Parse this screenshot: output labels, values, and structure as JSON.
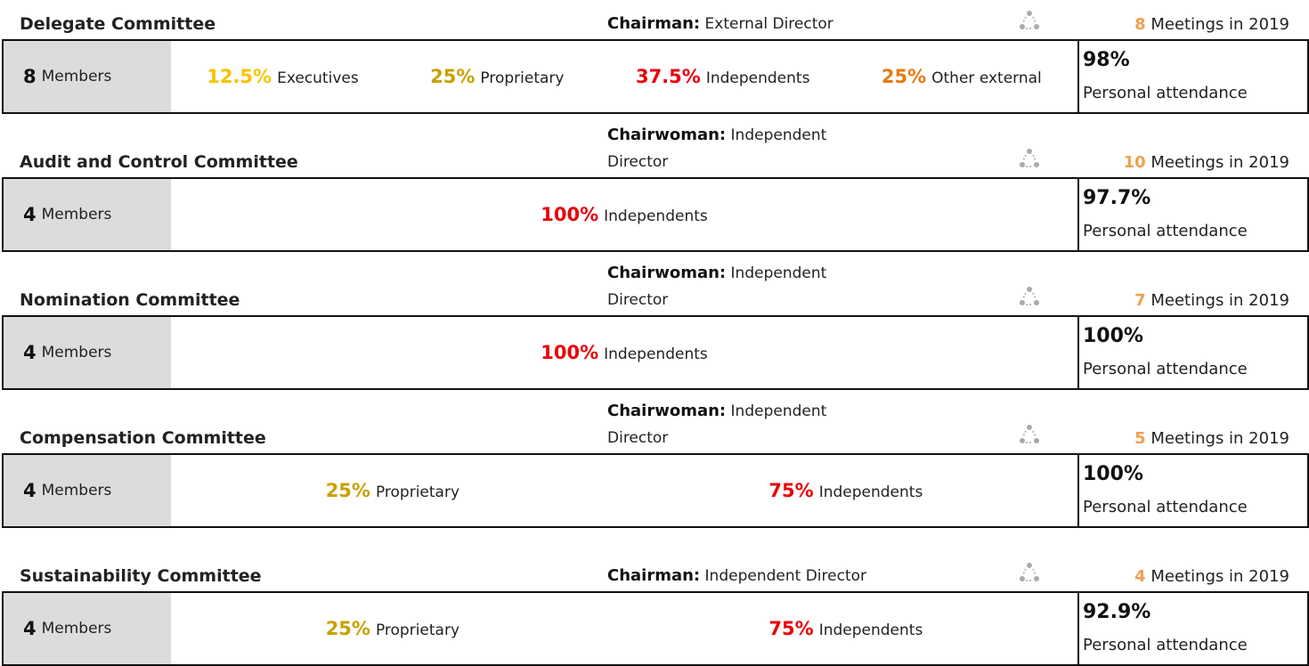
{
  "committees": [
    {
      "name": "Delegate Committee",
      "chair_label": "Chairman:",
      "chair_value": "External Director",
      "meetings_number": "8",
      "meetings_text": "Meetings in 2019",
      "members_number": "8",
      "members_text": "Members",
      "composition": [
        {
          "value": "12.5%",
          "label": "Executives",
          "color": "#f5c400"
        },
        {
          "value": "25%",
          "label": "Proprietary",
          "color": "#c9a000"
        },
        {
          "value": "37.5%",
          "label": "Independents",
          "color": "#e8000b"
        },
        {
          "value": "25%",
          "label": "Other external",
          "color": "#e87a10"
        }
      ],
      "attendance_value": "98%",
      "attendance_text": "Personal attendance"
    },
    {
      "name": "Audit and Control  Committee",
      "chair_label": "Chairwoman:",
      "chair_value": "Independent Director",
      "meetings_number": "10",
      "meetings_text": "Meetings in 2019",
      "members_number": "4",
      "members_text": "Members",
      "composition": [
        {
          "value": "100%",
          "label": "Independents",
          "color": "#e8000b"
        }
      ],
      "attendance_value": "97.7%",
      "attendance_text": "Personal attendance"
    },
    {
      "name": "Nomination Committee",
      "chair_label": "Chairwoman:",
      "chair_value": "Independent Director",
      "meetings_number": "7",
      "meetings_text": "Meetings in 2019",
      "members_number": "4",
      "members_text": "Members",
      "composition": [
        {
          "value": "100%",
          "label": "Independents",
          "color": "#e8000b"
        }
      ],
      "attendance_value": "100%",
      "attendance_text": "Personal attendance"
    },
    {
      "name": "Compensation Committee",
      "chair_label": "Chairwoman:",
      "chair_value": "Independent Director",
      "meetings_number": "5",
      "meetings_text": "Meetings in 2019",
      "members_number": "4",
      "members_text": "Members",
      "composition": [
        {
          "value": "25%",
          "label": "Proprietary",
          "color": "#c9a000"
        },
        {
          "value": "75%",
          "label": "Independents",
          "color": "#e8000b"
        }
      ],
      "attendance_value": "100%",
      "attendance_text": "Personal attendance"
    },
    {
      "name": "Sustainability Committee",
      "chair_label": "Chairman:",
      "chair_value": "Independent Director",
      "meetings_number": "4",
      "meetings_text": "Meetings in 2019",
      "members_number": "4",
      "members_text": "Members",
      "composition": [
        {
          "value": "25%",
          "label": "Proprietary",
          "color": "#c9a000"
        },
        {
          "value": "75%",
          "label": "Independents",
          "color": "#e8000b"
        }
      ],
      "attendance_value": "92.9%",
      "attendance_text": "Personal attendance"
    }
  ]
}
